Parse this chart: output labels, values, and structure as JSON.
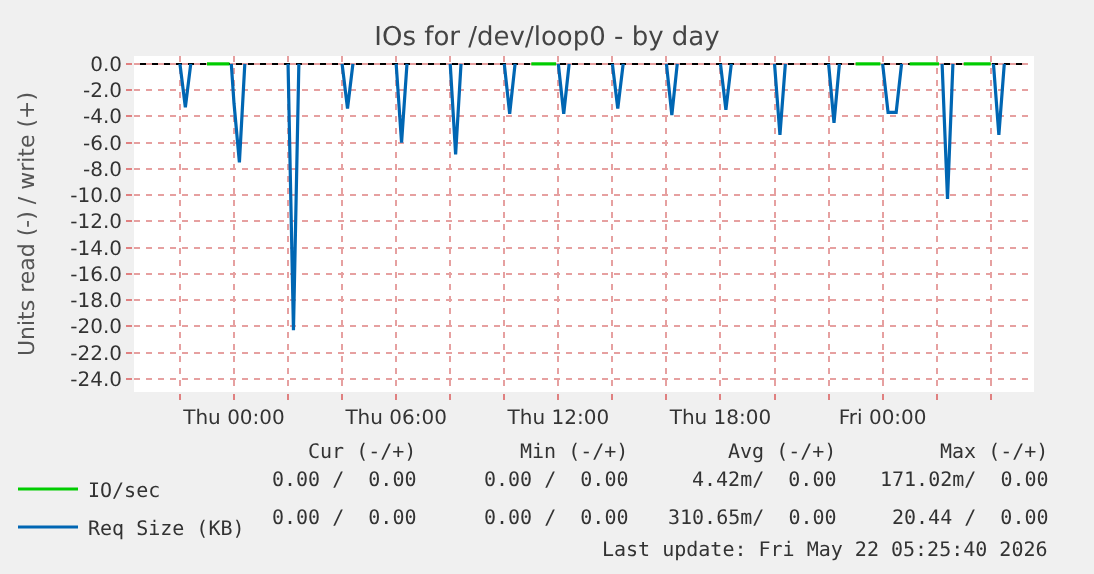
{
  "chart_data": {
    "type": "line",
    "title": "IOs for /dev/loop0 - by day",
    "ylabel": "Units read (-) / write (+)",
    "xlim": [
      "2026-05-20T20:18",
      "2026-05-22T05:36"
    ],
    "xticks": [
      {
        "value": "2026-05-20T22:00",
        "label": null
      },
      {
        "value": "2026-05-21T00:00",
        "label": "Thu 00:00"
      },
      {
        "value": "2026-05-21T02:00",
        "label": null
      },
      {
        "value": "2026-05-21T04:00",
        "label": null
      },
      {
        "value": "2026-05-21T06:00",
        "label": "Thu 06:00"
      },
      {
        "value": "2026-05-21T08:00",
        "label": null
      },
      {
        "value": "2026-05-21T10:00",
        "label": null
      },
      {
        "value": "2026-05-21T12:00",
        "label": "Thu 12:00"
      },
      {
        "value": "2026-05-21T14:00",
        "label": null
      },
      {
        "value": "2026-05-21T16:00",
        "label": null
      },
      {
        "value": "2026-05-21T18:00",
        "label": "Thu 18:00"
      },
      {
        "value": "2026-05-21T20:00",
        "label": null
      },
      {
        "value": "2026-05-21T22:00",
        "label": null
      },
      {
        "value": "2026-05-22T00:00",
        "label": "Fri 00:00"
      },
      {
        "value": "2026-05-22T02:00",
        "label": null
      },
      {
        "value": "2026-05-22T04:00",
        "label": null
      }
    ],
    "ylim": [
      -25,
      0.6
    ],
    "yticks": [
      {
        "value": 0,
        "label": "0.0"
      },
      {
        "value": -2,
        "label": "-2.0"
      },
      {
        "value": -4,
        "label": "-4.0"
      },
      {
        "value": -6,
        "label": "-6.0"
      },
      {
        "value": -8,
        "label": "-8.0"
      },
      {
        "value": -10,
        "label": "-10.0"
      },
      {
        "value": -12,
        "label": "-12.0"
      },
      {
        "value": -14,
        "label": "-14.0"
      },
      {
        "value": -16,
        "label": "-16.0"
      },
      {
        "value": -18,
        "label": "-18.0"
      },
      {
        "value": -20,
        "label": "-20.0"
      },
      {
        "value": -22,
        "label": "-22.0"
      },
      {
        "value": -24,
        "label": "-24.0"
      }
    ],
    "grid": true,
    "legend": "bottom left",
    "marker": "none",
    "line_style": "solid",
    "series": [
      {
        "name": "IO/sec",
        "color": "#00cc00",
        "x": [
          "2026-05-20T23:00",
          "2026-05-20T23:50",
          "2026-05-20T23:51",
          "2026-05-21T11:00",
          "2026-05-21T11:55",
          "2026-05-21T11:56",
          "2026-05-21T23:00",
          "2026-05-21T23:55",
          "2026-05-21T23:56",
          "2026-05-22T01:00",
          "2026-05-22T02:05",
          "2026-05-22T02:06",
          "2026-05-22T03:00",
          "2026-05-22T04:00"
        ],
        "values": [
          0,
          0,
          null,
          0,
          0,
          null,
          0,
          0,
          null,
          0,
          0,
          null,
          0,
          0
        ]
      },
      {
        "name": "Req Size (KB)",
        "color": "#0066b3",
        "x": [
          "2026-05-20T22:00",
          "2026-05-20T22:12",
          "2026-05-20T22:24",
          "2026-05-20T23:00",
          "2026-05-20T23:54",
          "2026-05-21T00:00",
          "2026-05-21T00:12",
          "2026-05-21T00:24",
          "2026-05-21T01:00",
          "2026-05-21T02:00",
          "2026-05-21T02:12",
          "2026-05-21T02:24",
          "2026-05-21T03:00",
          "2026-05-21T04:00",
          "2026-05-21T04:12",
          "2026-05-21T04:24",
          "2026-05-21T05:00",
          "2026-05-21T06:00",
          "2026-05-21T06:12",
          "2026-05-21T06:24",
          "2026-05-21T07:00",
          "2026-05-21T08:00",
          "2026-05-21T08:12",
          "2026-05-21T08:24",
          "2026-05-21T09:00",
          "2026-05-21T10:00",
          "2026-05-21T10:12",
          "2026-05-21T10:24",
          "2026-05-21T11:00",
          "2026-05-21T12:00",
          "2026-05-21T12:12",
          "2026-05-21T12:24",
          "2026-05-21T13:00",
          "2026-05-21T14:00",
          "2026-05-21T14:12",
          "2026-05-21T14:24",
          "2026-05-21T15:00",
          "2026-05-21T16:00",
          "2026-05-21T16:12",
          "2026-05-21T16:24",
          "2026-05-21T17:00",
          "2026-05-21T18:00",
          "2026-05-21T18:12",
          "2026-05-21T18:24",
          "2026-05-21T19:00",
          "2026-05-21T20:00",
          "2026-05-21T20:12",
          "2026-05-21T20:24",
          "2026-05-21T21:00",
          "2026-05-21T22:00",
          "2026-05-21T22:12",
          "2026-05-21T22:24",
          "2026-05-21T23:00",
          "2026-05-22T00:00",
          "2026-05-22T00:12",
          "2026-05-22T00:30",
          "2026-05-22T00:42",
          "2026-05-22T01:00",
          "2026-05-22T02:12",
          "2026-05-22T02:24",
          "2026-05-22T02:36",
          "2026-05-22T03:00",
          "2026-05-22T04:06",
          "2026-05-22T04:18",
          "2026-05-22T04:30"
        ],
        "values": [
          0,
          -3.3,
          0,
          null,
          0,
          -3.0,
          -7.5,
          0,
          null,
          0,
          -20.3,
          0,
          null,
          0,
          -3.4,
          0,
          null,
          0,
          -6.0,
          0,
          null,
          0,
          -6.9,
          0,
          null,
          0,
          -3.8,
          0,
          null,
          0,
          -3.8,
          0,
          null,
          0,
          -3.4,
          0,
          null,
          0,
          -3.9,
          0,
          null,
          0,
          -3.5,
          0,
          null,
          0,
          -5.4,
          0,
          null,
          0,
          -4.5,
          0,
          null,
          0,
          -3.7,
          -3.7,
          0,
          null,
          0,
          -10.3,
          0,
          null,
          0,
          -5.4,
          0
        ]
      }
    ],
    "ref_lines": [
      {
        "axis": "y",
        "value": 0,
        "color": "#000000"
      }
    ],
    "annotations": [
      "Cur (-/+)",
      "Min (-/+)",
      "Avg (-/+)",
      "Max (-/+)",
      "0.00 /  0.00",
      "0.00 /  0.00",
      "4.42m/  0.00",
      "171.02m/  0.00",
      "0.00 /  0.00",
      "0.00 /  0.00",
      "310.65m/  0.00",
      "20.44 /  0.00",
      "Last update: Fri May 22 05:25:40 2026"
    ]
  }
}
